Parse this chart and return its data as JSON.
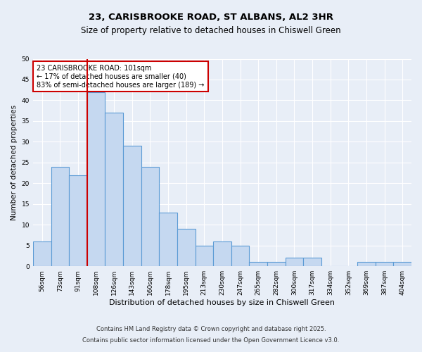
{
  "title_line1": "23, CARISBROOKE ROAD, ST ALBANS, AL2 3HR",
  "title_line2": "Size of property relative to detached houses in Chiswell Green",
  "xlabel": "Distribution of detached houses by size in Chiswell Green",
  "ylabel": "Number of detached properties",
  "categories": [
    "56sqm",
    "73sqm",
    "91sqm",
    "108sqm",
    "126sqm",
    "143sqm",
    "160sqm",
    "178sqm",
    "195sqm",
    "213sqm",
    "230sqm",
    "247sqm",
    "265sqm",
    "282sqm",
    "300sqm",
    "317sqm",
    "334sqm",
    "352sqm",
    "369sqm",
    "387sqm",
    "404sqm"
  ],
  "values": [
    6,
    24,
    22,
    42,
    37,
    29,
    24,
    13,
    9,
    5,
    6,
    5,
    1,
    1,
    2,
    2,
    0,
    0,
    1,
    1,
    1
  ],
  "bar_color": "#c5d8f0",
  "bar_edge_color": "#5b9bd5",
  "vline_color": "#cc0000",
  "annotation_text": "23 CARISBROOKE ROAD: 101sqm\n← 17% of detached houses are smaller (40)\n83% of semi-detached houses are larger (189) →",
  "annotation_box_color": "#ffffff",
  "annotation_box_edge_color": "#cc0000",
  "ylim": [
    0,
    50
  ],
  "yticks": [
    0,
    5,
    10,
    15,
    20,
    25,
    30,
    35,
    40,
    45,
    50
  ],
  "bg_color": "#e8eef7",
  "fig_bg_color": "#e8eef7",
  "footer_line1": "Contains HM Land Registry data © Crown copyright and database right 2025.",
  "footer_line2": "Contains public sector information licensed under the Open Government Licence v3.0."
}
